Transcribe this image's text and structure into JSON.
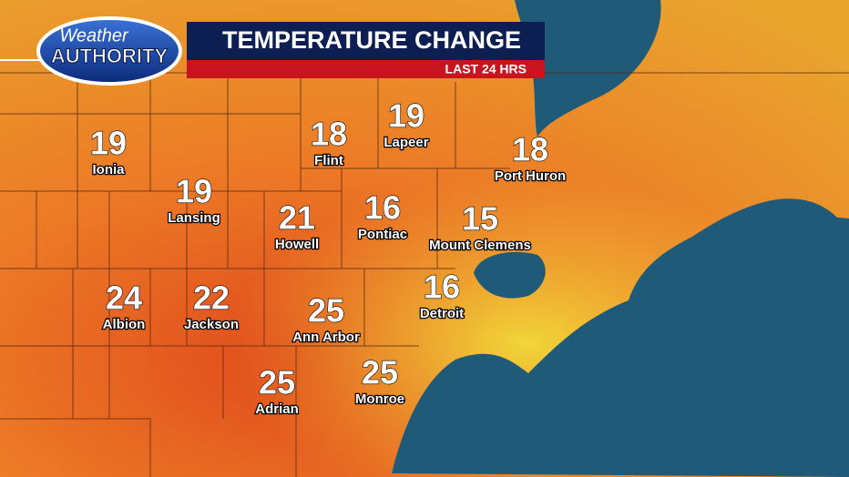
{
  "header": {
    "logo_top": "Weather",
    "logo_bottom": "AUTHORITY",
    "title": "TEMPERATURE CHANGE",
    "subtitle": "LAST 24 HRS"
  },
  "cities": [
    {
      "name": "Ionia",
      "value": 19
    },
    {
      "name": "Lansing",
      "value": 19
    },
    {
      "name": "Flint",
      "value": 18
    },
    {
      "name": "Lapeer",
      "value": 19
    },
    {
      "name": "Port Huron",
      "value": 18
    },
    {
      "name": "Howell",
      "value": 21
    },
    {
      "name": "Pontiac",
      "value": 16
    },
    {
      "name": "Mount Clemens",
      "value": 15
    },
    {
      "name": "Albion",
      "value": 24
    },
    {
      "name": "Jackson",
      "value": 22
    },
    {
      "name": "Ann Arbor",
      "value": 25
    },
    {
      "name": "Detroit",
      "value": 16
    },
    {
      "name": "Adrian",
      "value": 25
    },
    {
      "name": "Monroe",
      "value": 25
    }
  ]
}
